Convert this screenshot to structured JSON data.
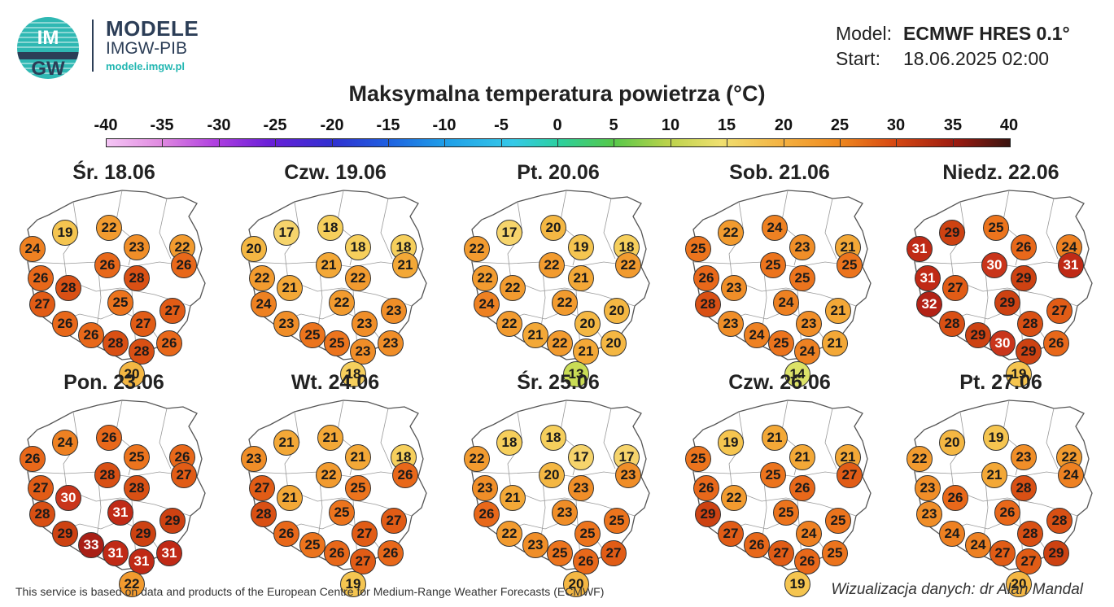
{
  "header": {
    "brand_title": "MODELE",
    "brand_sub": "IMGW-PIB",
    "brand_url": "modele.imgw.pl",
    "logo_text_top": "IM",
    "logo_text_bottom": "GW",
    "model_label": "Model:",
    "model_value": "ECMWF HRES 0.1°",
    "start_label": "Start:",
    "start_value": "18.06.2025 02:00"
  },
  "title": "Maksymalna temperatura powietrza (°C)",
  "scale_ticks": [
    "-40",
    "-35",
    "-30",
    "-25",
    "-20",
    "-15",
    "-10",
    "-5",
    "0",
    "5",
    "10",
    "15",
    "20",
    "25",
    "30",
    "35",
    "40"
  ],
  "colors": {
    "t13": "#c9dc55",
    "t14": "#dce268",
    "t17": "#f6d46c",
    "t18": "#f6cf5c",
    "t19": "#f5c550",
    "t20": "#f4b743",
    "t21": "#f3a837",
    "t22": "#f29b2f",
    "t23": "#f08e28",
    "t24": "#ee8122",
    "t25": "#ec741d",
    "t26": "#e8681a",
    "t27": "#e15c16",
    "t28": "#d95014",
    "t29": "#cd4212",
    "t30": "#c9351b",
    "t31": "#c02a16",
    "t32": "#b32216",
    "t33": "#a91f16"
  },
  "days": [
    {
      "label": "Śr. 18.06",
      "temps": [
        "19",
        "22",
        "24",
        "23",
        "22",
        "26",
        "26",
        "26",
        "28",
        "27",
        "28",
        "25",
        "26",
        "27",
        "27",
        "26",
        "28",
        "28",
        "26",
        "20"
      ]
    },
    {
      "label": "Czw. 19.06",
      "temps": [
        "17",
        "18",
        "20",
        "18",
        "18",
        "21",
        "21",
        "22",
        "21",
        "24",
        "22",
        "22",
        "23",
        "23",
        "23",
        "25",
        "25",
        "23",
        "23",
        "18"
      ]
    },
    {
      "label": "Pt. 20.06",
      "temps": [
        "17",
        "20",
        "22",
        "19",
        "18",
        "22",
        "22",
        "22",
        "22",
        "24",
        "21",
        "22",
        "22",
        "20",
        "20",
        "21",
        "22",
        "21",
        "20",
        "13"
      ]
    },
    {
      "label": "Sob. 21.06",
      "temps": [
        "22",
        "24",
        "25",
        "23",
        "21",
        "25",
        "25",
        "26",
        "23",
        "28",
        "25",
        "24",
        "23",
        "21",
        "23",
        "24",
        "25",
        "24",
        "21",
        "14"
      ]
    },
    {
      "label": "Niedz. 22.06",
      "temps": [
        "29",
        "25",
        "31",
        "26",
        "24",
        "30",
        "31",
        "31",
        "27",
        "32",
        "29",
        "29",
        "28",
        "27",
        "28",
        "29",
        "30",
        "29",
        "26",
        "19"
      ]
    },
    {
      "label": "Pon. 23.06",
      "temps": [
        "24",
        "26",
        "26",
        "25",
        "26",
        "28",
        "27",
        "27",
        "30",
        "28",
        "28",
        "31",
        "29",
        "29",
        "29",
        "33",
        "31",
        "31",
        "31",
        "22"
      ]
    },
    {
      "label": "Wt. 24.06",
      "temps": [
        "21",
        "21",
        "23",
        "21",
        "18",
        "22",
        "26",
        "27",
        "21",
        "28",
        "25",
        "25",
        "26",
        "27",
        "27",
        "25",
        "26",
        "27",
        "26",
        "19"
      ]
    },
    {
      "label": "Śr. 25.06",
      "temps": [
        "18",
        "18",
        "22",
        "17",
        "17",
        "20",
        "23",
        "23",
        "21",
        "26",
        "23",
        "23",
        "22",
        "25",
        "25",
        "23",
        "25",
        "26",
        "27",
        "20"
      ]
    },
    {
      "label": "Czw. 26.06",
      "temps": [
        "19",
        "21",
        "25",
        "21",
        "21",
        "25",
        "27",
        "26",
        "22",
        "29",
        "26",
        "25",
        "27",
        "25",
        "24",
        "26",
        "27",
        "26",
        "25",
        "19"
      ]
    },
    {
      "label": "Pt. 27.06",
      "temps": [
        "20",
        "19",
        "22",
        "23",
        "22",
        "21",
        "24",
        "23",
        "26",
        "23",
        "28",
        "26",
        "24",
        "28",
        "28",
        "24",
        "27",
        "27",
        "29",
        "20"
      ]
    }
  ],
  "footer": {
    "left": "This service is based on data and products of the European Centre for Medium-Range Weather Forecasts (ECMWF)",
    "right": "Wizualizacja danych: dr Alan Mandal"
  }
}
